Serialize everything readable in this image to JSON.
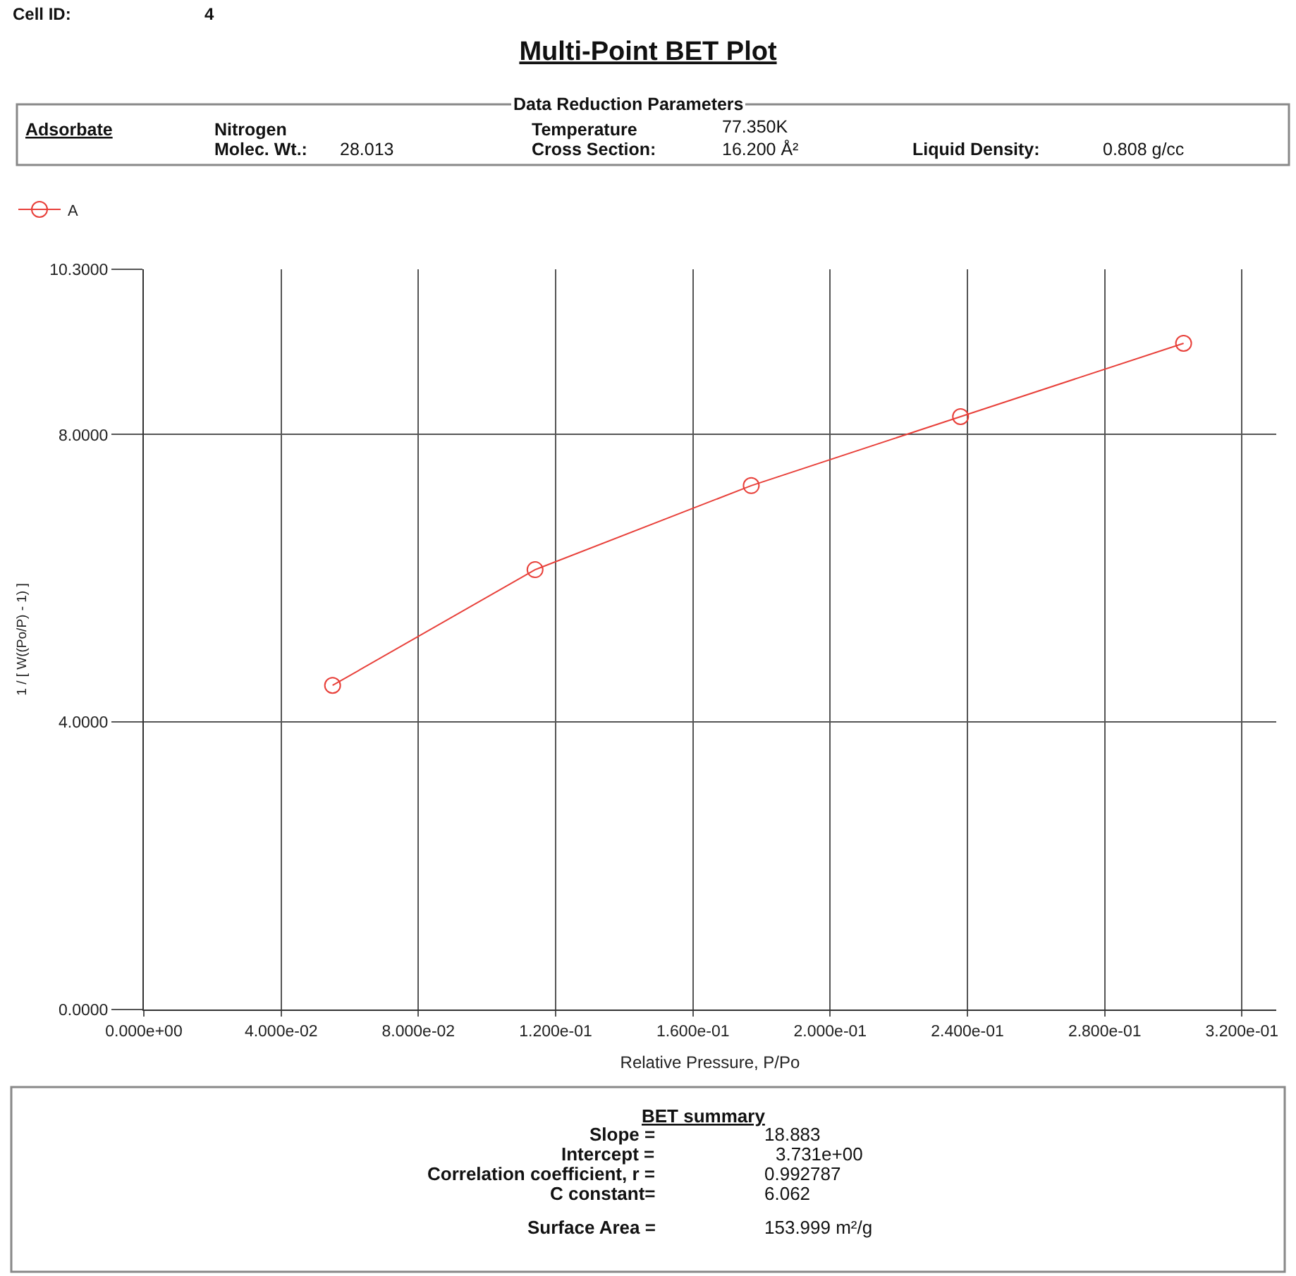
{
  "chart_data": {
    "type": "line",
    "title": "Multi-Point BET Plot",
    "xlabel": "Relative Pressure, P/Po",
    "ylabel": "1 / [ W((Po/P) - 1) ]",
    "x": [
      0.055,
      0.114,
      0.177,
      0.238,
      0.303
    ],
    "series": [
      {
        "name": "A",
        "color": "#e8403a",
        "values": [
          4.51,
          6.12,
          7.29,
          8.25,
          9.27
        ]
      }
    ],
    "xlim": [
      0,
      0.33
    ],
    "xticks": [
      {
        "value": 0,
        "label": "0.000e+00"
      },
      {
        "value": 0.04,
        "label": "4.000e-02"
      },
      {
        "value": 0.08,
        "label": "8.000e-02"
      },
      {
        "value": 0.12,
        "label": "1.200e-01"
      },
      {
        "value": 0.16,
        "label": "1.600e-01"
      },
      {
        "value": 0.2,
        "label": "2.000e-01"
      },
      {
        "value": 0.24,
        "label": "2.400e-01"
      },
      {
        "value": 0.28,
        "label": "2.800e-01"
      },
      {
        "value": 0.32,
        "label": "3.200e-01"
      }
    ],
    "ylim": [
      0,
      10.3
    ],
    "yticks": [
      {
        "value": 0,
        "label": "0.0000"
      },
      {
        "value": 4,
        "label": "4.0000"
      },
      {
        "value": 8,
        "label": "8.0000"
      },
      {
        "value": 10.3,
        "label": "10.3000"
      }
    ],
    "grid": true,
    "legend": "top left",
    "marker": "circle",
    "line_style": "solid",
    "annotations": [
      "Cell ID:",
      "4",
      "Data Reduction Parameters",
      "Adsorbate",
      "Nitrogen",
      "Molec. Wt.:",
      "28.013",
      "Temperature",
      "77.350K",
      "Cross Section:",
      "16.200 Å²",
      "Liquid Density:",
      "0.808 g/cc",
      "BET summary",
      "Slope =",
      "18.883",
      "Intercept =",
      "3.731e+00",
      "Correlation coefficient, r =",
      "0.992787",
      "C constant=",
      "6.062",
      "Surface Area =",
      "153.999 m²/g"
    ]
  }
}
